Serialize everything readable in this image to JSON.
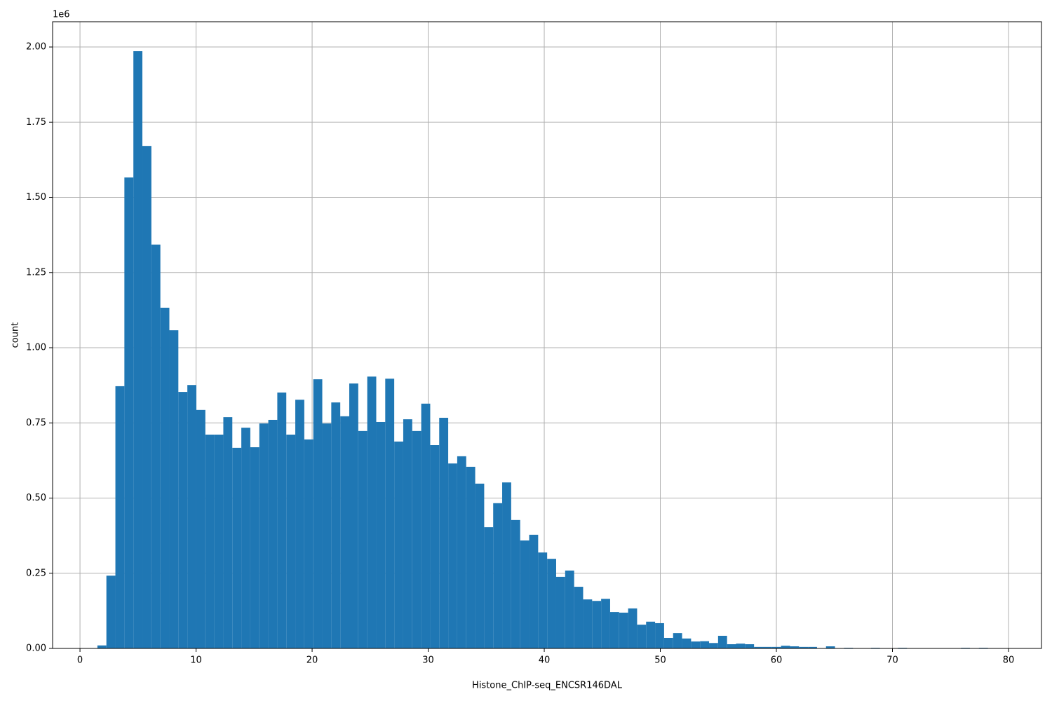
{
  "chart_data": {
    "type": "histogram",
    "x_label": "Histone_ChIP-seq_ENCSR146DAL",
    "y_label": "count",
    "y_offset_label": "1e6",
    "color": "#1f77b4",
    "grid": true,
    "bins": [
      1.5,
      2.275,
      3.05,
      3.825,
      4.6,
      5.375,
      6.15,
      6.925,
      7.7,
      8.475,
      9.25,
      10.025,
      10.8,
      11.575,
      12.35,
      13.125,
      13.9,
      14.675,
      15.45,
      16.225,
      17,
      17.775,
      18.55,
      19.325,
      20.1,
      20.875,
      21.65,
      22.425,
      23.2,
      23.975,
      24.75,
      25.525,
      26.3,
      27.075,
      27.85,
      28.625,
      29.4,
      30.175,
      30.95,
      31.725,
      32.5,
      33.275,
      34.05,
      34.825,
      35.6,
      36.375,
      37.15,
      37.925,
      38.7,
      39.475,
      40.25,
      41.025,
      41.8,
      42.575,
      43.35,
      44.125,
      44.9,
      45.675,
      46.45,
      47.225,
      48,
      48.775,
      49.55,
      50.325,
      51.1,
      51.875,
      52.65,
      53.425,
      54.2,
      54.975,
      55.75,
      56.525,
      57.3,
      58.075,
      58.85,
      59.625,
      60.4,
      61.175,
      61.95,
      62.725,
      63.5,
      64.275,
      65.05,
      65.825,
      66.6,
      67.375,
      68.15,
      68.925,
      69.7,
      70.475,
      71.25,
      72.025,
      72.8,
      73.575,
      74.35,
      75.125,
      75.9,
      76.675,
      77.45,
      78.225,
      79
    ],
    "counts": [
      10000,
      242000,
      872000,
      1566000,
      1986000,
      1671000,
      1343000,
      1133000,
      1058000,
      853000,
      876000,
      793000,
      711000,
      711000,
      769000,
      667000,
      734000,
      669000,
      748000,
      760000,
      851000,
      711000,
      827000,
      695000,
      895000,
      748000,
      818000,
      772000,
      881000,
      723000,
      904000,
      753000,
      897000,
      688000,
      762000,
      723000,
      814000,
      676000,
      767000,
      615000,
      639000,
      604000,
      548000,
      403000,
      483000,
      552000,
      427000,
      359000,
      378000,
      319000,
      298000,
      238000,
      259000,
      205000,
      163000,
      158000,
      165000,
      121000,
      119000,
      133000,
      79000,
      89000,
      84000,
      35000,
      51000,
      33000,
      23000,
      24000,
      18000,
      42000,
      14000,
      16000,
      14000,
      5000,
      5000,
      5000,
      9000,
      7000,
      5000,
      5000,
      0,
      7000,
      0,
      2000,
      0,
      0,
      2000,
      0,
      0,
      2000,
      0,
      0,
      0,
      0,
      0,
      0,
      2000,
      0,
      2000,
      0
    ],
    "xlim": [
      -2.36,
      82.84
    ],
    "ylim": [
      0,
      2084000
    ],
    "xticks": [
      0,
      10,
      20,
      30,
      40,
      50,
      60,
      70,
      80
    ],
    "yticks": [
      {
        "value": 0,
        "label": "0.00"
      },
      {
        "value": 250000,
        "label": "0.25"
      },
      {
        "value": 500000,
        "label": "0.50"
      },
      {
        "value": 750000,
        "label": "0.75"
      },
      {
        "value": 1000000,
        "label": "1.00"
      },
      {
        "value": 1250000,
        "label": "1.25"
      },
      {
        "value": 1500000,
        "label": "1.50"
      },
      {
        "value": 1750000,
        "label": "1.75"
      },
      {
        "value": 2000000,
        "label": "2.00"
      }
    ]
  }
}
